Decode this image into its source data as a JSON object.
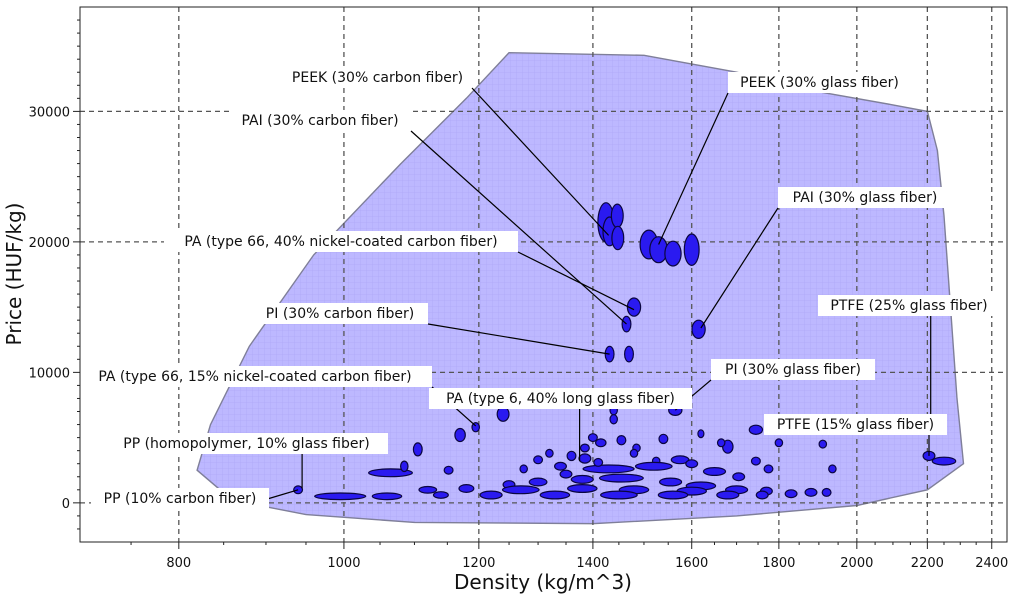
{
  "chart_data": {
    "type": "scatter",
    "title": "",
    "xlabel": "Density (kg/m^3)",
    "ylabel": "Price (HUF/kg)",
    "x_scale": "log",
    "xlim": [
      700,
      2450
    ],
    "ylim": [
      -3000,
      38000
    ],
    "x_ticks": [
      800,
      1000,
      1200,
      1400,
      1600,
      1800,
      2000,
      2200,
      2400
    ],
    "y_ticks": [
      0,
      10000,
      20000,
      30000
    ],
    "grid": true,
    "colors": {
      "envelope_fill": "#bdb8ff",
      "envelope_stroke": "#7f7f99",
      "bubble_fill": "#2a1af0",
      "bubble_stroke": "#0b0640",
      "grid": "#555555"
    },
    "envelope": [
      [
        820,
        2500
      ],
      [
        835,
        6000
      ],
      [
        880,
        12000
      ],
      [
        960,
        19000
      ],
      [
        1080,
        26000
      ],
      [
        1180,
        31000
      ],
      [
        1250,
        34500
      ],
      [
        1500,
        34300
      ],
      [
        1700,
        33000
      ],
      [
        1900,
        31500
      ],
      [
        2100,
        30500
      ],
      [
        2200,
        30000
      ],
      [
        2230,
        27000
      ],
      [
        2250,
        22000
      ],
      [
        2270,
        15000
      ],
      [
        2290,
        8000
      ],
      [
        2310,
        3000
      ],
      [
        2200,
        1000
      ],
      [
        2000,
        -200
      ],
      [
        1700,
        -1000
      ],
      [
        1400,
        -1600
      ],
      [
        1100,
        -1500
      ],
      [
        950,
        -900
      ],
      [
        860,
        200
      ],
      [
        820,
        2500
      ]
    ],
    "materials": [
      {
        "x": 1425,
        "y": 21500,
        "rx": 1.1,
        "ry": 1500
      },
      {
        "x": 1432,
        "y": 20800,
        "rx": 0.9,
        "ry": 1100
      },
      {
        "x": 1447,
        "y": 22000,
        "rx": 0.8,
        "ry": 900
      },
      {
        "x": 1448,
        "y": 20300,
        "rx": 0.8,
        "ry": 900
      },
      {
        "x": 1510,
        "y": 19800,
        "rx": 1.2,
        "ry": 1100
      },
      {
        "x": 1530,
        "y": 19400,
        "rx": 1.2,
        "ry": 1000
      },
      {
        "x": 1560,
        "y": 19100,
        "rx": 1.1,
        "ry": 950
      },
      {
        "x": 1600,
        "y": 19400,
        "rx": 1.0,
        "ry": 1200
      },
      {
        "x": 1480,
        "y": 15000,
        "rx": 0.9,
        "ry": 700
      },
      {
        "x": 1465,
        "y": 13700,
        "rx": 0.6,
        "ry": 600
      },
      {
        "x": 1615,
        "y": 13300,
        "rx": 0.9,
        "ry": 700
      },
      {
        "x": 1432,
        "y": 11400,
        "rx": 0.6,
        "ry": 600
      },
      {
        "x": 1470,
        "y": 11400,
        "rx": 0.6,
        "ry": 600
      },
      {
        "x": 1240,
        "y": 6800,
        "rx": 0.8,
        "ry": 550
      },
      {
        "x": 1195,
        "y": 5800,
        "rx": 0.5,
        "ry": 350
      },
      {
        "x": 1170,
        "y": 5200,
        "rx": 0.7,
        "ry": 500
      },
      {
        "x": 1440,
        "y": 7100,
        "rx": 0.5,
        "ry": 350
      },
      {
        "x": 1440,
        "y": 6400,
        "rx": 0.5,
        "ry": 350
      },
      {
        "x": 1565,
        "y": 7100,
        "rx": 0.9,
        "ry": 400
      },
      {
        "x": 2215,
        "y": 5600,
        "rx": 1.3,
        "ry": 350
      },
      {
        "x": 2205,
        "y": 3600,
        "rx": 0.8,
        "ry": 350
      },
      {
        "x": 2250,
        "y": 3200,
        "rx": 1.6,
        "ry": 300
      },
      {
        "x": 1745,
        "y": 5600,
        "rx": 0.9,
        "ry": 350
      },
      {
        "x": 1680,
        "y": 4300,
        "rx": 0.7,
        "ry": 500
      },
      {
        "x": 1620,
        "y": 5300,
        "rx": 0.4,
        "ry": 300
      },
      {
        "x": 1455,
        "y": 4800,
        "rx": 0.6,
        "ry": 350
      },
      {
        "x": 1540,
        "y": 4900,
        "rx": 0.6,
        "ry": 350
      },
      {
        "x": 1665,
        "y": 4600,
        "rx": 0.5,
        "ry": 300
      },
      {
        "x": 1800,
        "y": 4600,
        "rx": 0.5,
        "ry": 300
      },
      {
        "x": 1910,
        "y": 4500,
        "rx": 0.5,
        "ry": 300
      },
      {
        "x": 1935,
        "y": 2600,
        "rx": 0.5,
        "ry": 300
      },
      {
        "x": 1775,
        "y": 2600,
        "rx": 0.6,
        "ry": 300
      },
      {
        "x": 1745,
        "y": 3200,
        "rx": 0.6,
        "ry": 300
      },
      {
        "x": 1105,
        "y": 4100,
        "rx": 0.6,
        "ry": 500
      },
      {
        "x": 1065,
        "y": 2300,
        "rx": 3.0,
        "ry": 300
      },
      {
        "x": 1085,
        "y": 2800,
        "rx": 0.5,
        "ry": 400
      },
      {
        "x": 1152,
        "y": 2500,
        "rx": 0.6,
        "ry": 300
      },
      {
        "x": 940,
        "y": 1000,
        "rx": 0.6,
        "ry": 300
      },
      {
        "x": 995,
        "y": 500,
        "rx": 3.5,
        "ry": 250
      },
      {
        "x": 1060,
        "y": 500,
        "rx": 2.0,
        "ry": 250
      },
      {
        "x": 1360,
        "y": 3600,
        "rx": 0.6,
        "ry": 350
      },
      {
        "x": 1385,
        "y": 3400,
        "rx": 0.8,
        "ry": 350
      },
      {
        "x": 1400,
        "y": 5000,
        "rx": 0.6,
        "ry": 300
      },
      {
        "x": 1415,
        "y": 4600,
        "rx": 0.7,
        "ry": 300
      },
      {
        "x": 1385,
        "y": 4200,
        "rx": 0.6,
        "ry": 300
      },
      {
        "x": 1485,
        "y": 4200,
        "rx": 0.5,
        "ry": 300
      },
      {
        "x": 1525,
        "y": 3200,
        "rx": 0.5,
        "ry": 300
      },
      {
        "x": 1575,
        "y": 3300,
        "rx": 1.2,
        "ry": 300
      },
      {
        "x": 1600,
        "y": 3000,
        "rx": 0.8,
        "ry": 300
      },
      {
        "x": 1320,
        "y": 3800,
        "rx": 0.5,
        "ry": 300
      },
      {
        "x": 1300,
        "y": 3300,
        "rx": 0.6,
        "ry": 300
      },
      {
        "x": 1340,
        "y": 2800,
        "rx": 0.8,
        "ry": 300
      },
      {
        "x": 1275,
        "y": 2600,
        "rx": 0.5,
        "ry": 300
      },
      {
        "x": 1430,
        "y": 2600,
        "rx": 3.5,
        "ry": 300
      },
      {
        "x": 1520,
        "y": 2800,
        "rx": 2.5,
        "ry": 300
      },
      {
        "x": 1650,
        "y": 2400,
        "rx": 1.5,
        "ry": 300
      },
      {
        "x": 1705,
        "y": 2000,
        "rx": 0.8,
        "ry": 300
      },
      {
        "x": 1455,
        "y": 1900,
        "rx": 3.0,
        "ry": 300
      },
      {
        "x": 1380,
        "y": 1800,
        "rx": 1.5,
        "ry": 300
      },
      {
        "x": 1300,
        "y": 1600,
        "rx": 1.2,
        "ry": 300
      },
      {
        "x": 1250,
        "y": 1400,
        "rx": 0.8,
        "ry": 300
      },
      {
        "x": 1555,
        "y": 1600,
        "rx": 1.5,
        "ry": 300
      },
      {
        "x": 1620,
        "y": 1300,
        "rx": 2.0,
        "ry": 300
      },
      {
        "x": 1180,
        "y": 1100,
        "rx": 1.0,
        "ry": 300
      },
      {
        "x": 1120,
        "y": 1000,
        "rx": 1.2,
        "ry": 250
      },
      {
        "x": 1270,
        "y": 1000,
        "rx": 2.5,
        "ry": 300
      },
      {
        "x": 1380,
        "y": 1100,
        "rx": 2.0,
        "ry": 300
      },
      {
        "x": 1480,
        "y": 1000,
        "rx": 2.0,
        "ry": 300
      },
      {
        "x": 1600,
        "y": 900,
        "rx": 2.0,
        "ry": 300
      },
      {
        "x": 1700,
        "y": 1000,
        "rx": 1.5,
        "ry": 300
      },
      {
        "x": 1770,
        "y": 900,
        "rx": 0.8,
        "ry": 300
      },
      {
        "x": 1140,
        "y": 600,
        "rx": 1.0,
        "ry": 250
      },
      {
        "x": 1220,
        "y": 600,
        "rx": 1.5,
        "ry": 300
      },
      {
        "x": 1330,
        "y": 600,
        "rx": 2.0,
        "ry": 300
      },
      {
        "x": 1450,
        "y": 600,
        "rx": 2.5,
        "ry": 300
      },
      {
        "x": 1560,
        "y": 600,
        "rx": 2.0,
        "ry": 300
      },
      {
        "x": 1680,
        "y": 600,
        "rx": 1.5,
        "ry": 300
      },
      {
        "x": 1760,
        "y": 600,
        "rx": 0.8,
        "ry": 300
      },
      {
        "x": 1830,
        "y": 700,
        "rx": 0.8,
        "ry": 300
      },
      {
        "x": 1880,
        "y": 800,
        "rx": 0.8,
        "ry": 300
      },
      {
        "x": 1920,
        "y": 800,
        "rx": 0.6,
        "ry": 300
      },
      {
        "x": 1350,
        "y": 2200,
        "rx": 0.8,
        "ry": 300
      },
      {
        "x": 1480,
        "y": 3800,
        "rx": 0.5,
        "ry": 300
      },
      {
        "x": 1410,
        "y": 3100,
        "rx": 0.6,
        "ry": 300
      }
    ],
    "annotations": [
      {
        "text": "PEEK (30% carbon fiber)",
        "x": 1430,
        "y": 20500
      },
      {
        "text": "PEEK (30% glass fiber)",
        "x": 1530,
        "y": 19800
      },
      {
        "text": "PAI (30% carbon fiber)",
        "x": 1465,
        "y": 13700
      },
      {
        "text": "PAI (30% glass fiber)",
        "x": 1620,
        "y": 13400
      },
      {
        "text": "PA (type 66, 40% nickel-coated carbon fiber)",
        "x": 1480,
        "y": 14800
      },
      {
        "text": "PI (30% carbon fiber)",
        "x": 1432,
        "y": 11400
      },
      {
        "text": "PI (30% glass fiber)",
        "x": 1565,
        "y": 7100
      },
      {
        "text": "PTFE (25% glass fiber)",
        "x": 2210,
        "y": 5800
      },
      {
        "text": "PA (type 66, 15% nickel-coated carbon fiber)",
        "x": 1195,
        "y": 5900
      },
      {
        "text": "PA (type 6, 40% long glass fiber)",
        "x": 1375,
        "y": 3200
      },
      {
        "text": "PTFE (15% glass fiber)",
        "x": 2205,
        "y": 3600
      },
      {
        "text": "PP (homopolymer, 10% glass fiber)",
        "x": 945,
        "y": 1100
      },
      {
        "text": "PP (10% carbon fiber)",
        "x": 940,
        "y": 1000
      }
    ]
  }
}
